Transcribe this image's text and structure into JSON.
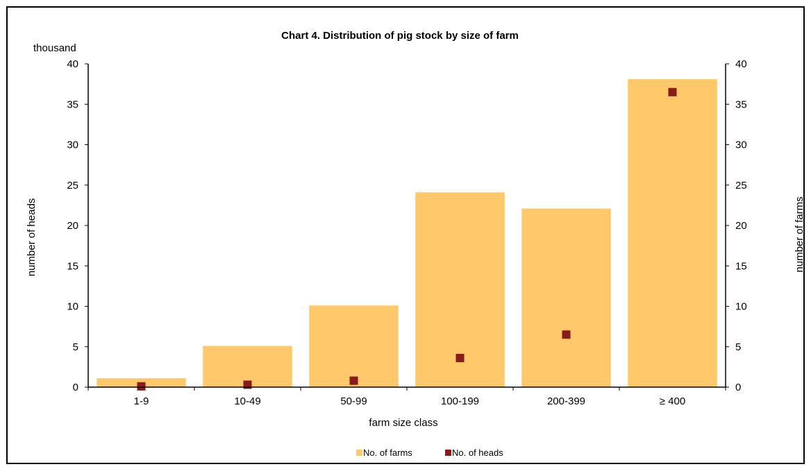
{
  "chart_data": {
    "type": "bar",
    "title": "Chart 4.  Distribution of pig stock by size of farm",
    "unit_label": "thousand",
    "xlabel": "farm size class",
    "ylabel_left": "number of heads",
    "ylabel_right": "number of farms",
    "categories": [
      "1-9",
      "10-49",
      "50-99",
      "100-199",
      "200-399",
      "≥ 400"
    ],
    "ylim_left": [
      0,
      40
    ],
    "ylim_right": [
      0,
      40
    ],
    "yticks": [
      0,
      5,
      10,
      15,
      20,
      25,
      30,
      35,
      40
    ],
    "grid": false,
    "legend_position": "bottom",
    "series": [
      {
        "name": "No. of farms",
        "kind": "bar",
        "axis": "right",
        "color": "#FFC96B",
        "values": [
          1.1,
          5.1,
          10.1,
          24.1,
          22.1,
          38.1
        ]
      },
      {
        "name": "No. of heads",
        "kind": "marker",
        "axis": "left",
        "color": "#8B1A1A",
        "values": [
          0.1,
          0.3,
          0.8,
          3.6,
          6.5,
          36.5
        ]
      }
    ]
  }
}
